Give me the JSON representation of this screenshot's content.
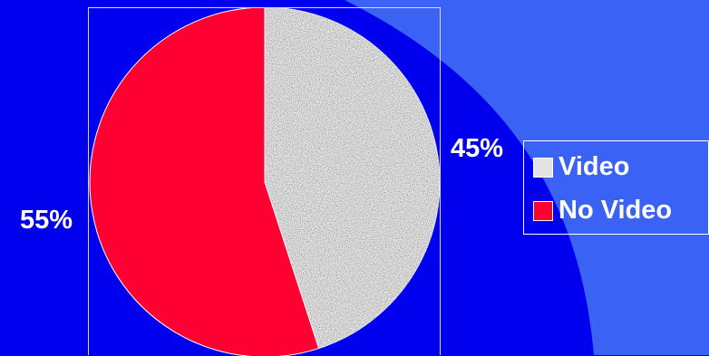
{
  "chart_data": {
    "type": "pie",
    "title": "",
    "legend_position": "right",
    "series": [
      {
        "values": [
          45,
          55
        ],
        "categories": [
          "Video",
          "No Video"
        ]
      }
    ],
    "slices": [
      {
        "label": "Video",
        "value": 45,
        "value_label": "45%",
        "color": "#e9e9e9",
        "texture": "speckled-gray"
      },
      {
        "label": "No Video",
        "value": 55,
        "value_label": "55%",
        "color": "#ff0033"
      }
    ]
  },
  "colors": {
    "background": "#0000ee",
    "background_accent": "#3a63f5",
    "frame": "#d8d8ff"
  }
}
